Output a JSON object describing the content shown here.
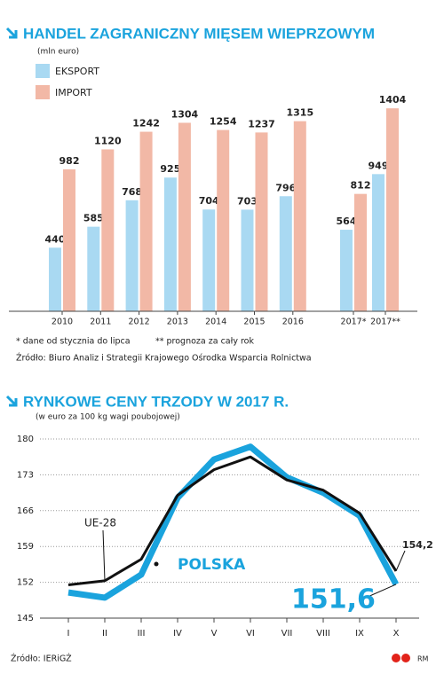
{
  "chart_data": [
    {
      "type": "bar",
      "title": "HANDEL ZAGRANICZNY MIĘSEM WIEPRZOWYM",
      "subtitle": "(mln euro)",
      "categories": [
        "2010",
        "2011",
        "2012",
        "2013",
        "2014",
        "2015",
        "2016",
        "2017*",
        "2017**"
      ],
      "series": [
        {
          "name": "EKSPORT",
          "color": "#a9d9f2",
          "values": [
            440,
            585,
            768,
            925,
            704,
            703,
            796,
            564,
            949
          ]
        },
        {
          "name": "IMPORT",
          "color": "#f2b8a6",
          "values": [
            982,
            1120,
            1242,
            1304,
            1254,
            1237,
            1315,
            812,
            1404
          ]
        }
      ],
      "notes": [
        "* dane od stycznia do lipca",
        "** prognoza za cały rok"
      ],
      "source": "Źródło: Biuro Analiz i Strategii Krajowego Ośrodka Wsparcia Rolnictwa"
    },
    {
      "type": "line",
      "title": "RYNKOWE CENY TRZODY W 2017 R.",
      "subtitle": "(w euro za 100 kg wagi poubojowej)",
      "categories": [
        "I",
        "II",
        "III",
        "IV",
        "V",
        "VI",
        "VII",
        "VIII",
        "IX",
        "X"
      ],
      "ylim": [
        145,
        180
      ],
      "yticks": [
        145,
        152,
        159,
        166,
        173,
        180
      ],
      "grid": true,
      "series": [
        {
          "name": "UE-28",
          "color": "#111111",
          "values": [
            151.5,
            152.3,
            156.5,
            169,
            174,
            176.5,
            172,
            170,
            165.5,
            154.2
          ],
          "value_labels": [
            null,
            null,
            null,
            null,
            null,
            null,
            null,
            null,
            null,
            "154,2"
          ]
        },
        {
          "name": "POLSKA",
          "color": "#1aa3dd",
          "values": [
            150,
            149,
            153.5,
            168.5,
            176,
            178.5,
            172.5,
            169.5,
            165,
            151.6
          ],
          "value_labels": [
            null,
            null,
            null,
            null,
            null,
            null,
            null,
            null,
            null,
            "151,6"
          ]
        }
      ],
      "source": "Źródło: IERiGŻ",
      "credit": "RM"
    }
  ]
}
